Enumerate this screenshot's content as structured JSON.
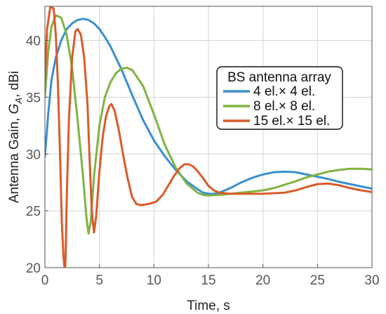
{
  "chart_data": {
    "type": "line",
    "xlabel": "Time, s",
    "ylabel_main": "Antenna Gain, ",
    "ylabel_symbol": "G",
    "ylabel_sub": "A",
    "ylabel_unit": ", dBi",
    "xlim": [
      0,
      30
    ],
    "ylim": [
      20,
      43
    ],
    "xticks": [
      0,
      5,
      10,
      15,
      20,
      25,
      30
    ],
    "yticks": [
      20,
      25,
      30,
      35,
      40
    ],
    "grid": true,
    "legend": {
      "title": "BS antenna array",
      "placement": "right-middle"
    },
    "series": [
      {
        "name": "4 el.× 4 el.",
        "color": "#3a8fd0",
        "x": [
          0,
          0.3,
          0.6,
          1,
          1.5,
          2,
          2.5,
          3,
          3.5,
          4,
          4.5,
          5,
          5.5,
          6,
          7,
          8,
          9,
          10,
          11,
          12,
          13,
          14,
          14.5,
          15,
          15.5,
          16,
          17,
          18,
          19,
          20,
          21,
          22,
          23,
          24,
          25,
          26,
          27,
          28,
          29,
          30
        ],
        "y": [
          29.8,
          33.5,
          36.5,
          38.5,
          40.0,
          41.0,
          41.5,
          41.8,
          41.9,
          41.8,
          41.5,
          41.0,
          40.3,
          39.5,
          37.5,
          35.2,
          33.0,
          31.2,
          29.8,
          28.6,
          27.6,
          26.9,
          26.6,
          26.5,
          26.5,
          26.6,
          27.0,
          27.5,
          27.9,
          28.2,
          28.4,
          28.45,
          28.4,
          28.2,
          28.0,
          27.8,
          27.55,
          27.35,
          27.15,
          26.95
        ]
      },
      {
        "name": "8 el.× 8 el.",
        "color": "#7fb342",
        "x": [
          0,
          0.3,
          0.6,
          1,
          1.5,
          2,
          2.5,
          3,
          3.5,
          3.8,
          4.0,
          4.2,
          4.5,
          5,
          5.5,
          6,
          6.5,
          7,
          7.5,
          8,
          9,
          10,
          11,
          12,
          13,
          14,
          14.5,
          15,
          16,
          17,
          18,
          19,
          20,
          21,
          22,
          23,
          24,
          25,
          26,
          27,
          28,
          29,
          30
        ],
        "y": [
          35.0,
          39.0,
          41.2,
          42.2,
          42.0,
          40.5,
          37.5,
          33.0,
          28.0,
          24.5,
          23.0,
          24.0,
          28.0,
          32.5,
          35.0,
          36.3,
          37.1,
          37.5,
          37.6,
          37.4,
          36.0,
          33.5,
          30.8,
          28.8,
          27.4,
          26.6,
          26.4,
          26.35,
          26.4,
          26.5,
          26.6,
          26.7,
          26.8,
          27.0,
          27.3,
          27.6,
          27.95,
          28.2,
          28.45,
          28.6,
          28.7,
          28.7,
          28.65
        ]
      },
      {
        "name": "15 el.× 15 el.",
        "color": "#d95b2a",
        "x": [
          0,
          0.2,
          0.5,
          0.8,
          1.0,
          1.2,
          1.4,
          1.55,
          1.7,
          1.8,
          1.85,
          1.9,
          2.0,
          2.2,
          2.5,
          2.8,
          3.0,
          3.3,
          3.6,
          3.9,
          4.1,
          4.3,
          4.5,
          4.7,
          5.0,
          5.3,
          5.6,
          5.9,
          6.1,
          6.4,
          6.8,
          7.2,
          7.6,
          8.0,
          8.4,
          8.8,
          9.5,
          10.2,
          10.8,
          11.3,
          11.8,
          12.3,
          12.8,
          13.2,
          13.6,
          14.0,
          14.5,
          15.0,
          15.5,
          16.0,
          17.0,
          18.0,
          19.0,
          20.0,
          21.0,
          22.0,
          23.0,
          24.0,
          25.0,
          26.0,
          27.0,
          28.0,
          29.0,
          30.0
        ],
        "y": [
          36.5,
          41.0,
          43.0,
          42.8,
          40.5,
          36.0,
          29.5,
          24.0,
          21.0,
          20.0,
          20.0,
          21.0,
          26.0,
          33.0,
          38.5,
          40.8,
          41.0,
          40.5,
          38.5,
          34.5,
          29.5,
          25.0,
          23.1,
          24.5,
          28.5,
          31.5,
          33.3,
          34.2,
          34.4,
          33.8,
          32.0,
          29.8,
          27.8,
          26.2,
          25.6,
          25.5,
          25.6,
          25.8,
          26.4,
          27.2,
          28.0,
          28.7,
          29.1,
          29.1,
          28.9,
          28.5,
          27.9,
          27.2,
          26.8,
          26.6,
          26.5,
          26.5,
          26.5,
          26.5,
          26.55,
          26.6,
          26.8,
          27.1,
          27.35,
          27.4,
          27.25,
          27.0,
          26.8,
          26.65
        ]
      }
    ]
  }
}
